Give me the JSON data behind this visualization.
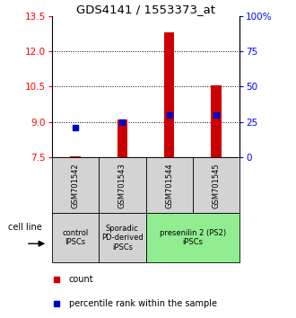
{
  "title": "GDS4141 / 1553373_at",
  "samples": [
    "GSM701542",
    "GSM701543",
    "GSM701544",
    "GSM701545"
  ],
  "count_values": [
    7.55,
    9.1,
    12.8,
    10.55
  ],
  "percentile_values": [
    8.75,
    9.0,
    9.3,
    9.3
  ],
  "y_min": 7.5,
  "y_max": 13.5,
  "y_ticks": [
    7.5,
    9.0,
    10.5,
    12.0,
    13.5
  ],
  "grid_lines": [
    9.0,
    10.5,
    12.0
  ],
  "y2_ticks": [
    0,
    25,
    50,
    75,
    100
  ],
  "y2_labels": [
    "0",
    "25",
    "50",
    "75",
    "100%"
  ],
  "bar_color": "#cc0000",
  "dot_color": "#0000cc",
  "bar_width": 0.22,
  "groups": [
    {
      "label": "control\nIPSCs",
      "start": 0,
      "end": 1,
      "color": "#d3d3d3"
    },
    {
      "label": "Sporadic\nPD-derived\niPSCs",
      "start": 1,
      "end": 2,
      "color": "#d3d3d3"
    },
    {
      "label": "presenilin 2 (PS2)\niPSCs",
      "start": 2,
      "end": 4,
      "color": "#90ee90"
    }
  ],
  "cell_line_label": "cell line",
  "legend_count_label": "count",
  "legend_percentile_label": "percentile rank within the sample",
  "title_fontsize": 9.5,
  "tick_fontsize": 7.5,
  "sample_fontsize": 6.0,
  "group_fontsize": 6.0,
  "legend_fontsize": 7.0
}
